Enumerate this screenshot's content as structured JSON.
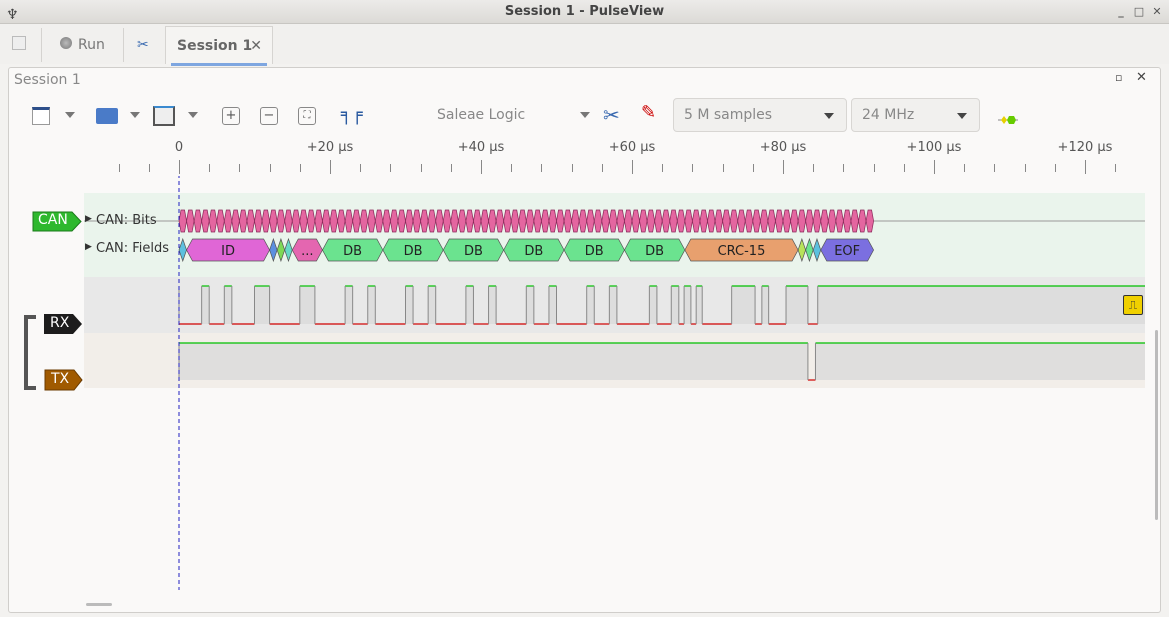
{
  "window": {
    "title": "Session 1 - PulseView"
  },
  "tabbar": {
    "run_label": "Run",
    "session_tab": "Session 1"
  },
  "session": {
    "title": "Session 1"
  },
  "toolbar": {
    "device": "Saleae Logic",
    "samples": "5 M samples",
    "samplerate": "24 MHz"
  },
  "ruler": {
    "ticks": [
      "0",
      "+20 µs",
      "+40 µs",
      "+60 µs",
      "+80 µs",
      "+100 µs",
      "+120 µs"
    ]
  },
  "decoder": {
    "name": "CAN",
    "rows": [
      "CAN: Bits",
      "CAN: Fields"
    ],
    "bit_count": 92,
    "fields": [
      {
        "label": "",
        "start": 0,
        "end": 1,
        "color": "#5bc0de"
      },
      {
        "label": "ID",
        "start": 1,
        "end": 12,
        "color": "#e066d6"
      },
      {
        "label": "",
        "start": 12,
        "end": 13,
        "color": "#5b8fe0"
      },
      {
        "label": "",
        "start": 13,
        "end": 14,
        "color": "#7ed957"
      },
      {
        "label": "",
        "start": 14,
        "end": 15,
        "color": "#66d9c6"
      },
      {
        "label": "...",
        "start": 15,
        "end": 19,
        "color": "#e466b0"
      },
      {
        "label": "DB",
        "start": 19,
        "end": 27,
        "color": "#6be38f"
      },
      {
        "label": "DB",
        "start": 27,
        "end": 35,
        "color": "#6be38f"
      },
      {
        "label": "DB",
        "start": 35,
        "end": 43,
        "color": "#6be38f"
      },
      {
        "label": "DB",
        "start": 43,
        "end": 51,
        "color": "#6be38f"
      },
      {
        "label": "DB",
        "start": 51,
        "end": 59,
        "color": "#6be38f"
      },
      {
        "label": "DB",
        "start": 59,
        "end": 67,
        "color": "#6be38f"
      },
      {
        "label": "CRC-15",
        "start": 67,
        "end": 82,
        "color": "#e8a06e"
      },
      {
        "label": "",
        "start": 82,
        "end": 83,
        "color": "#b8e35a"
      },
      {
        "label": "",
        "start": 83,
        "end": 84,
        "color": "#6be38f"
      },
      {
        "label": "",
        "start": 84,
        "end": 85,
        "color": "#5bc0de"
      },
      {
        "label": "EOF",
        "start": 85,
        "end": 92,
        "color": "#7b6fe0"
      }
    ]
  },
  "channels": [
    {
      "name": "RX",
      "color": "#1c1c1c",
      "high_intervals_us": [
        [
          3,
          4
        ],
        [
          6,
          7
        ],
        [
          10,
          12
        ],
        [
          16,
          18
        ],
        [
          22,
          23
        ],
        [
          25,
          26
        ],
        [
          30,
          31
        ],
        [
          33,
          34
        ],
        [
          38,
          39
        ],
        [
          41,
          42
        ],
        [
          46,
          47
        ],
        [
          49,
          50
        ],
        [
          54,
          55
        ],
        [
          57,
          58
        ],
        [
          62.3,
          63.3
        ],
        [
          65.2,
          66.2
        ],
        [
          66.9,
          67.8
        ],
        [
          68.5,
          69.3
        ],
        [
          73.2,
          76.3
        ],
        [
          77.2,
          78.1
        ],
        [
          80.4,
          83.3
        ],
        [
          84.6,
          128
        ]
      ],
      "initial": "low"
    },
    {
      "name": "TX",
      "color": "#a05a00",
      "low_intervals_us": [
        [
          83.3,
          84.3
        ]
      ],
      "initial": "high"
    }
  ],
  "colors": {
    "high": "#00c000",
    "low": "#d00000",
    "cursor": "#2020c0"
  }
}
